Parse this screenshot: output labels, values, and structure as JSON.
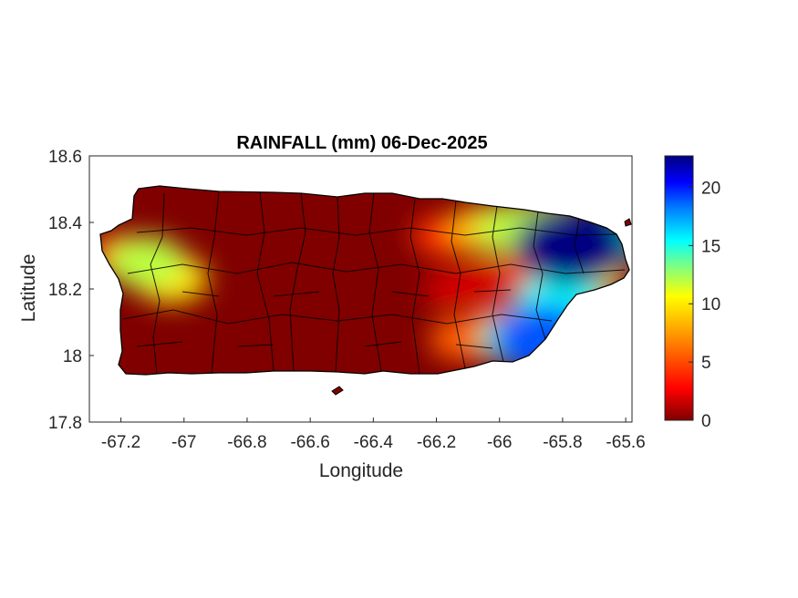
{
  "chart_data": {
    "type": "heatmap",
    "title": "RAINFALL (mm) 06-Dec-2025",
    "xlabel": "Longitude",
    "ylabel": "Latitude",
    "xlim": [
      -67.3,
      -65.58
    ],
    "ylim": [
      17.8,
      18.6
    ],
    "x_ticks": [
      -67.2,
      -67,
      -66.8,
      -66.6,
      -66.4,
      -66.2,
      -66,
      -65.8,
      -65.6
    ],
    "x_tick_labels": [
      "-67.2",
      "-67",
      "-66.8",
      "-66.6",
      "-66.4",
      "-66.2",
      "-66",
      "-65.8",
      "-65.6"
    ],
    "y_ticks": [
      17.8,
      18,
      18.2,
      18.4,
      18.6
    ],
    "y_tick_labels": [
      "17.8",
      "18",
      "18.2",
      "18.4",
      "18.6"
    ],
    "colorbar": {
      "min": 0,
      "max": 22.7,
      "ticks": [
        0,
        5,
        10,
        15,
        20
      ],
      "tick_labels": [
        "0",
        "5",
        "10",
        "15",
        "20"
      ],
      "colormap": [
        "#800000",
        "#ff0000",
        "#ff8000",
        "#ffff00",
        "#80ff80",
        "#00ffff",
        "#0080ff",
        "#0000ff",
        "#000080"
      ]
    },
    "grid": false,
    "rain_cells": [
      {
        "lon": -66.18,
        "lat": 18.36,
        "value": 4
      },
      {
        "lon": -66.05,
        "lat": 18.38,
        "value": 7
      },
      {
        "lon": -65.95,
        "lat": 18.38,
        "value": 10
      },
      {
        "lon": -65.85,
        "lat": 18.39,
        "value": 10
      },
      {
        "lon": -65.77,
        "lat": 18.33,
        "value": 22.7
      },
      {
        "lon": -65.7,
        "lat": 18.34,
        "value": 14
      },
      {
        "lon": -65.72,
        "lat": 18.24,
        "value": 8
      },
      {
        "lon": -65.82,
        "lat": 18.2,
        "value": 7
      },
      {
        "lon": -65.9,
        "lat": 18.25,
        "value": 4
      },
      {
        "lon": -66.05,
        "lat": 18.23,
        "value": 2
      },
      {
        "lon": -66.15,
        "lat": 18.2,
        "value": 2
      },
      {
        "lon": -66.0,
        "lat": 18.1,
        "value": 4
      },
      {
        "lon": -65.93,
        "lat": 18.05,
        "value": 12
      },
      {
        "lon": -65.86,
        "lat": 18.05,
        "value": 18
      },
      {
        "lon": -65.81,
        "lat": 18.15,
        "value": 14
      },
      {
        "lon": -66.12,
        "lat": 18.05,
        "value": 5
      },
      {
        "lon": -67.12,
        "lat": 18.28,
        "value": 10
      },
      {
        "lon": -67.04,
        "lat": 18.23,
        "value": 8
      },
      {
        "lon": -67.2,
        "lat": 18.3,
        "value": 5
      }
    ]
  }
}
